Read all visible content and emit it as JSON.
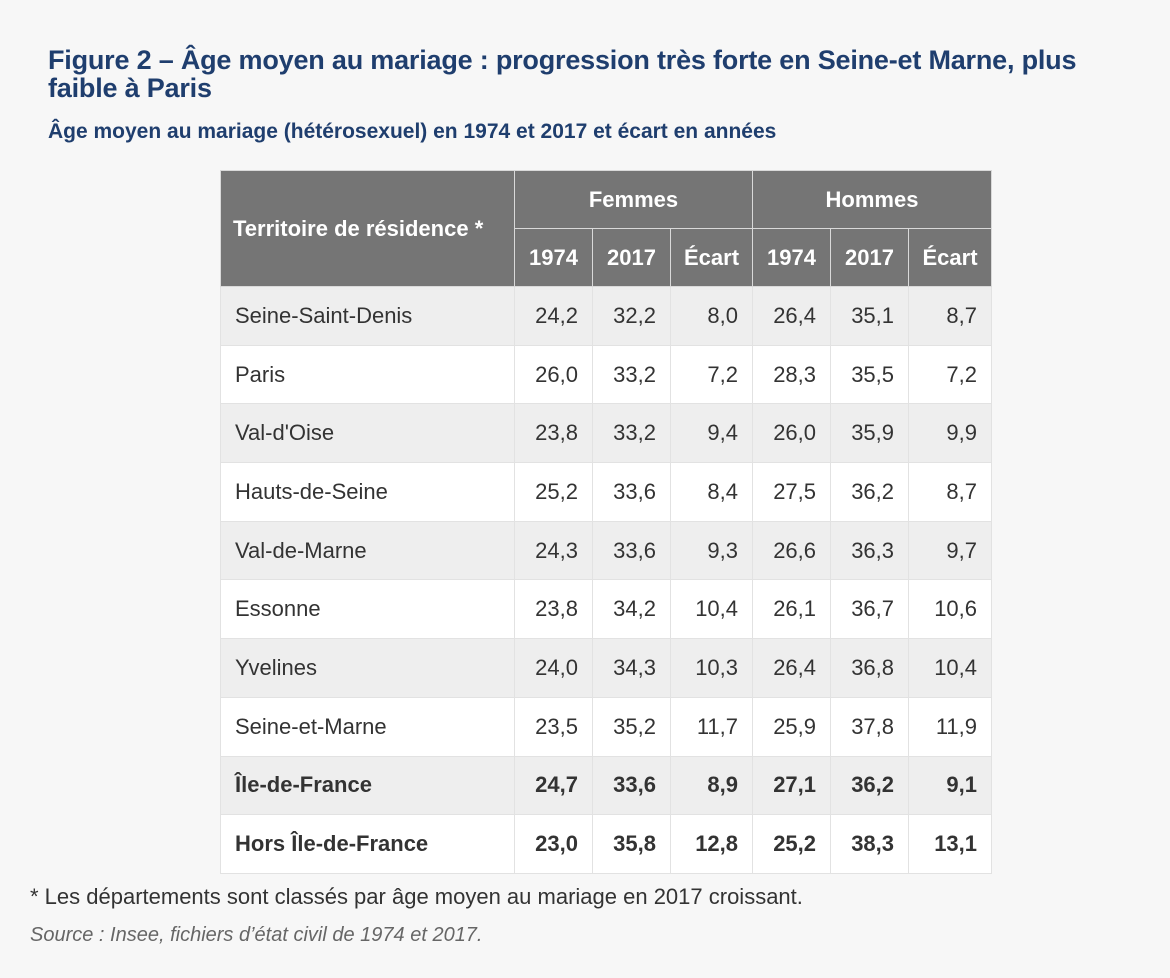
{
  "title": "Figure 2 – Âge moyen au mariage : progression très forte en Seine-et Marne, plus faible à Paris",
  "subtitle": "Âge moyen au mariage (hétérosexuel) en 1974 et 2017 et écart en années",
  "table": {
    "territory_header": "Territoire de résidence *",
    "groups": [
      "Femmes",
      "Hommes"
    ],
    "subheaders": [
      "1974",
      "2017",
      "Écart",
      "1974",
      "2017",
      "Écart"
    ],
    "rows": [
      {
        "name": "Seine-Saint-Denis",
        "values": [
          "24,2",
          "32,2",
          "8,0",
          "26,4",
          "35,1",
          "8,7"
        ],
        "bold": false
      },
      {
        "name": "Paris",
        "values": [
          "26,0",
          "33,2",
          "7,2",
          "28,3",
          "35,5",
          "7,2"
        ],
        "bold": false
      },
      {
        "name": "Val-d'Oise",
        "values": [
          "23,8",
          "33,2",
          "9,4",
          "26,0",
          "35,9",
          "9,9"
        ],
        "bold": false
      },
      {
        "name": "Hauts-de-Seine",
        "values": [
          "25,2",
          "33,6",
          "8,4",
          "27,5",
          "36,2",
          "8,7"
        ],
        "bold": false
      },
      {
        "name": "Val-de-Marne",
        "values": [
          "24,3",
          "33,6",
          "9,3",
          "26,6",
          "36,3",
          "9,7"
        ],
        "bold": false
      },
      {
        "name": "Essonne",
        "values": [
          "23,8",
          "34,2",
          "10,4",
          "26,1",
          "36,7",
          "10,6"
        ],
        "bold": false
      },
      {
        "name": "Yvelines",
        "values": [
          "24,0",
          "34,3",
          "10,3",
          "26,4",
          "36,8",
          "10,4"
        ],
        "bold": false
      },
      {
        "name": "Seine-et-Marne",
        "values": [
          "23,5",
          "35,2",
          "11,7",
          "25,9",
          "37,8",
          "11,9"
        ],
        "bold": false
      },
      {
        "name": "Île-de-France",
        "values": [
          "24,7",
          "33,6",
          "8,9",
          "27,1",
          "36,2",
          "9,1"
        ],
        "bold": true
      },
      {
        "name": "Hors Île-de-France",
        "values": [
          "23,0",
          "35,8",
          "12,8",
          "25,2",
          "38,3",
          "13,1"
        ],
        "bold": true
      }
    ]
  },
  "note": "* Les départements sont classés par âge moyen au mariage en 2017 croissant.",
  "source": "Source : Insee, fichiers d’état civil de 1974 et 2017.",
  "colors": {
    "title": "#1f3e6e",
    "header_bg": "#757575",
    "row_alt": "#eeeeee",
    "page_bg": "#f7f7f7"
  }
}
